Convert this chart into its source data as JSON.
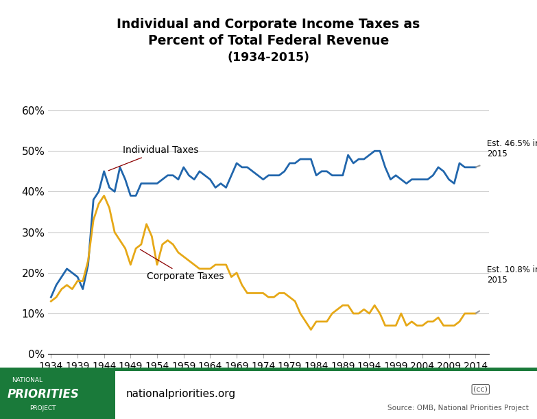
{
  "title_line1": "Individual and Corporate Income Taxes as",
  "title_line2": "Percent of Total Federal Revenue",
  "title_line3": "(1934-2015)",
  "individual_label": "Individual Taxes",
  "corporate_label": "Corporate Taxes",
  "est_individual": "Est. 46.5% in\n2015",
  "est_corporate": "Est. 10.8% in\n2015",
  "source_text": "Source: OMB, National Priorities Project",
  "website_text": "nationalpriorities.org",
  "individual_color": "#2166ac",
  "corporate_color": "#e6a817",
  "dashed_color": "#999999",
  "background_color": "#ffffff",
  "footer_color": "#1a7a3a",
  "ylim": [
    0,
    0.65
  ],
  "yticks": [
    0.0,
    0.1,
    0.2,
    0.3,
    0.4,
    0.5,
    0.6
  ],
  "ytick_labels": [
    "0%",
    "10%",
    "20%",
    "30%",
    "40%",
    "50%",
    "60%"
  ],
  "years": [
    1934,
    1935,
    1936,
    1937,
    1938,
    1939,
    1940,
    1941,
    1942,
    1943,
    1944,
    1945,
    1946,
    1947,
    1948,
    1949,
    1950,
    1951,
    1952,
    1953,
    1954,
    1955,
    1956,
    1957,
    1958,
    1959,
    1960,
    1961,
    1962,
    1963,
    1964,
    1965,
    1966,
    1967,
    1968,
    1969,
    1970,
    1971,
    1972,
    1973,
    1974,
    1975,
    1976,
    1977,
    1978,
    1979,
    1980,
    1981,
    1982,
    1983,
    1984,
    1985,
    1986,
    1987,
    1988,
    1989,
    1990,
    1991,
    1992,
    1993,
    1994,
    1995,
    1996,
    1997,
    1998,
    1999,
    2000,
    2001,
    2002,
    2003,
    2004,
    2005,
    2006,
    2007,
    2008,
    2009,
    2010,
    2011,
    2012,
    2013,
    2014,
    2015
  ],
  "individual": [
    0.14,
    0.17,
    0.19,
    0.21,
    0.2,
    0.19,
    0.16,
    0.22,
    0.38,
    0.4,
    0.45,
    0.41,
    0.4,
    0.46,
    0.43,
    0.39,
    0.39,
    0.42,
    0.42,
    0.42,
    0.42,
    0.43,
    0.44,
    0.44,
    0.43,
    0.46,
    0.44,
    0.43,
    0.45,
    0.44,
    0.43,
    0.41,
    0.42,
    0.41,
    0.44,
    0.47,
    0.46,
    0.46,
    0.45,
    0.44,
    0.43,
    0.44,
    0.44,
    0.44,
    0.45,
    0.47,
    0.47,
    0.48,
    0.48,
    0.48,
    0.44,
    0.45,
    0.45,
    0.44,
    0.44,
    0.44,
    0.49,
    0.47,
    0.48,
    0.48,
    0.49,
    0.5,
    0.5,
    0.46,
    0.43,
    0.44,
    0.43,
    0.42,
    0.43,
    0.43,
    0.43,
    0.43,
    0.44,
    0.46,
    0.45,
    0.43,
    0.42,
    0.47,
    0.46,
    0.46,
    0.46,
    0.465
  ],
  "corporate": [
    0.13,
    0.14,
    0.16,
    0.17,
    0.16,
    0.18,
    0.18,
    0.23,
    0.33,
    0.37,
    0.39,
    0.36,
    0.3,
    0.28,
    0.26,
    0.22,
    0.26,
    0.27,
    0.32,
    0.29,
    0.22,
    0.27,
    0.28,
    0.27,
    0.25,
    0.24,
    0.23,
    0.22,
    0.21,
    0.21,
    0.21,
    0.22,
    0.22,
    0.22,
    0.19,
    0.2,
    0.17,
    0.15,
    0.15,
    0.15,
    0.15,
    0.14,
    0.14,
    0.15,
    0.15,
    0.14,
    0.13,
    0.1,
    0.08,
    0.06,
    0.08,
    0.08,
    0.08,
    0.1,
    0.11,
    0.12,
    0.12,
    0.1,
    0.1,
    0.11,
    0.1,
    0.12,
    0.1,
    0.07,
    0.07,
    0.07,
    0.1,
    0.07,
    0.08,
    0.07,
    0.07,
    0.08,
    0.08,
    0.09,
    0.07,
    0.07,
    0.07,
    0.08,
    0.1,
    0.1,
    0.1,
    0.108
  ]
}
